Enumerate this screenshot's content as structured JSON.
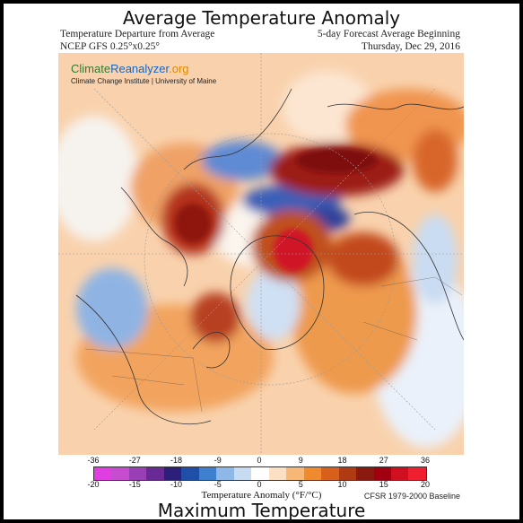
{
  "header": {
    "title": "Average Temperature Anomaly",
    "left_line1": "Temperature Departure from Average",
    "left_line2": "NCEP GFS 0.25°x0.25°",
    "right_line1": "5-day Forecast Average Beginning",
    "right_line2": "Thursday, Dec 29, 2016"
  },
  "logo": {
    "part1": "Climate",
    "part2": "Reanalyzer",
    "part3": ".org",
    "subtitle": "Climate Change Institute | University of Maine"
  },
  "legend": {
    "fahrenheit_ticks": [
      "-36",
      "-27",
      "-18",
      "-9",
      "0",
      "9",
      "18",
      "27",
      "36"
    ],
    "celsius_ticks": [
      "-20",
      "-15",
      "-10",
      "-5",
      "0",
      "5",
      "10",
      "15",
      "20"
    ],
    "label": "Temperature Anomaly (°F/°C)",
    "baseline": "CFSR 1979-2000 Baseline",
    "colors": [
      "#e03ee0",
      "#c64dd0",
      "#9a3fb5",
      "#6a2a95",
      "#2b1f7a",
      "#1f4fa8",
      "#3f7fd0",
      "#8db8e8",
      "#c7dcf3",
      "#ffffff",
      "#fbe0c4",
      "#f7b777",
      "#ef8a2e",
      "#d9601a",
      "#b03a12",
      "#8a1a10",
      "#a00010",
      "#d01020",
      "#f02030"
    ]
  },
  "footer": {
    "title": "Maximum Temperature"
  }
}
